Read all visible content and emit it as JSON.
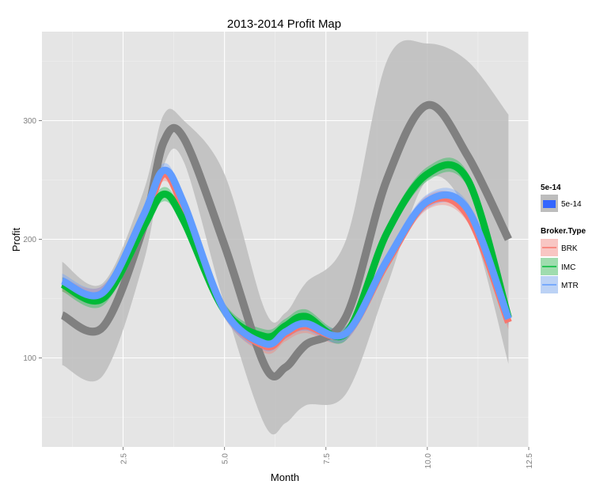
{
  "chart_data": {
    "type": "line",
    "title": "2013-2014 Profit Map",
    "xlabel": "Month",
    "ylabel": "Profit",
    "xlim": [
      0.5,
      12.5
    ],
    "ylim": [
      25,
      375
    ],
    "x_ticks": [
      2.5,
      5.0,
      7.5,
      10.0,
      12.5
    ],
    "x_tick_labels": [
      "2.5",
      "5.0",
      "7.5",
      "10.0",
      "12.5"
    ],
    "y_ticks": [
      100,
      200,
      300
    ],
    "y_tick_labels": [
      "100",
      "200",
      "300"
    ],
    "grid": true,
    "legend_position": "right",
    "legends": [
      {
        "title": "5e-14",
        "entries": [
          "5e-14"
        ]
      },
      {
        "title": "Broker.Type",
        "entries": [
          "BRK",
          "IMC",
          "MTR"
        ]
      }
    ],
    "x": [
      1,
      2,
      3,
      3.5,
      4,
      5,
      6,
      6.5,
      7,
      8,
      9,
      10,
      11,
      12
    ],
    "series": [
      {
        "name": "5e-14",
        "color": "#808080",
        "values": [
          136,
          126,
          210,
          282,
          285,
          195,
          93,
          92,
          111,
          135,
          250,
          313,
          270,
          200
        ],
        "band_upper": [
          181,
          163,
          240,
          305,
          300,
          255,
          140,
          138,
          163,
          200,
          350,
          365,
          350,
          305
        ],
        "band_lower": [
          94,
          85,
          180,
          262,
          265,
          145,
          43,
          45,
          60,
          70,
          160,
          250,
          220,
          95
        ]
      },
      {
        "name": "BRK",
        "color": "#f8766d",
        "values": [
          162,
          155,
          215,
          255,
          225,
          140,
          110,
          120,
          127,
          121,
          180,
          231,
          220,
          130
        ],
        "band_upper": [
          168,
          161,
          221,
          261,
          231,
          146,
          116,
          126,
          133,
          127,
          186,
          237,
          226,
          136
        ],
        "band_lower": [
          156,
          149,
          209,
          249,
          219,
          134,
          104,
          114,
          121,
          115,
          174,
          225,
          214,
          124
        ]
      },
      {
        "name": "IMC",
        "color": "#00ba38",
        "values": [
          162,
          150,
          210,
          238,
          215,
          140,
          118,
          127,
          135,
          121,
          205,
          255,
          250,
          134
        ],
        "band_upper": [
          168,
          156,
          216,
          244,
          221,
          146,
          124,
          133,
          141,
          127,
          211,
          261,
          256,
          140
        ],
        "band_lower": [
          156,
          144,
          204,
          232,
          209,
          134,
          112,
          121,
          129,
          115,
          199,
          249,
          244,
          128
        ]
      },
      {
        "name": "MTR",
        "color": "#619cff",
        "values": [
          165,
          155,
          220,
          258,
          230,
          140,
          112,
          122,
          129,
          121,
          182,
          232,
          225,
          133
        ],
        "band_upper": [
          171,
          161,
          226,
          264,
          236,
          146,
          118,
          128,
          135,
          127,
          188,
          238,
          231,
          139
        ],
        "band_lower": [
          159,
          149,
          214,
          252,
          224,
          134,
          106,
          116,
          123,
          115,
          176,
          226,
          219,
          127
        ]
      }
    ]
  }
}
